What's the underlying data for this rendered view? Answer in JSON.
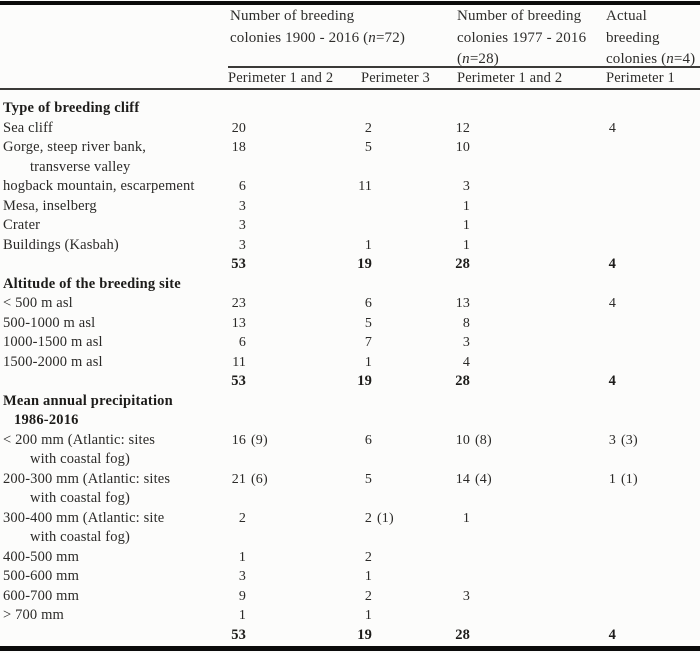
{
  "page": {
    "background": "#fcfcfb",
    "text_color": "#2b2a28",
    "rule_color": "#0b0b0b"
  },
  "header": {
    "groups": [
      {
        "line1": "Number of breeding",
        "line2_pre": "colonies 1900 - 2016 (",
        "n_italic": "n",
        "line2_post": "=72)"
      },
      {
        "line1": "Number of breeding",
        "line2": "colonies 1977 - 2016",
        "line3_pre": "(",
        "n_italic": "n",
        "line3_post": "=28)"
      },
      {
        "line1": "Actual",
        "line2": "breeding",
        "line3_pre": "colonies (",
        "n_italic": "n",
        "line3_post": "=4)"
      }
    ],
    "subheaders": [
      "Perimeter 1 and 2",
      "Perimeter 3",
      "Perimeter 1 and 2",
      "Perimeter 1"
    ]
  },
  "table": {
    "columns": [
      "Number of breeding colonies 1900 - 2016 (n=72) — Perimeter 1 and 2",
      "Number of breeding colonies 1900 - 2016 (n=72) — Perimeter 3",
      "Number of breeding colonies 1977 - 2016 (n=28) — Perimeter 1 and 2",
      "Actual breeding colonies (n=4) — Perimeter 1"
    ],
    "rows": [
      {
        "t": "section",
        "l": "Type of breeding cliff"
      },
      {
        "t": "data",
        "l": "Sea cliff",
        "c": [
          [
            "20",
            ""
          ],
          [
            "2",
            ""
          ],
          [
            "12",
            ""
          ],
          [
            "4",
            ""
          ]
        ]
      },
      {
        "t": "data",
        "l": "Gorge, steep river bank,",
        "l2": "transverse valley",
        "c": [
          [
            "18",
            ""
          ],
          [
            "5",
            ""
          ],
          [
            "10",
            ""
          ],
          null
        ]
      },
      {
        "t": "data",
        "l": "hogback mountain, escarpement",
        "c": [
          [
            "6",
            ""
          ],
          [
            "11",
            ""
          ],
          [
            "3",
            ""
          ],
          null
        ]
      },
      {
        "t": "data",
        "l": "Mesa, inselberg",
        "c": [
          [
            "3",
            ""
          ],
          null,
          [
            "1",
            ""
          ],
          null
        ]
      },
      {
        "t": "data",
        "l": "Crater",
        "c": [
          [
            "3",
            ""
          ],
          null,
          [
            "1",
            ""
          ],
          null
        ]
      },
      {
        "t": "data",
        "l": "Buildings (Kasbah)",
        "c": [
          [
            "3",
            ""
          ],
          [
            "1",
            ""
          ],
          [
            "1",
            ""
          ],
          null
        ]
      },
      {
        "t": "total",
        "l": "",
        "c": [
          [
            "53",
            ""
          ],
          [
            "19",
            ""
          ],
          [
            "28",
            ""
          ],
          [
            "4",
            ""
          ]
        ]
      },
      {
        "t": "section",
        "l": "Altitude of the breeding site"
      },
      {
        "t": "data",
        "l": "< 500 m asl",
        "c": [
          [
            "23",
            ""
          ],
          [
            "6",
            ""
          ],
          [
            "13",
            ""
          ],
          [
            "4",
            ""
          ]
        ]
      },
      {
        "t": "data",
        "l": "500-1000 m asl",
        "c": [
          [
            "13",
            ""
          ],
          [
            "5",
            ""
          ],
          [
            "8",
            ""
          ],
          null
        ]
      },
      {
        "t": "data",
        "l": "1000-1500 m asl",
        "c": [
          [
            "6",
            ""
          ],
          [
            "7",
            ""
          ],
          [
            "3",
            ""
          ],
          null
        ]
      },
      {
        "t": "data",
        "l": "1500-2000 m asl",
        "c": [
          [
            "11",
            ""
          ],
          [
            "1",
            ""
          ],
          [
            "4",
            ""
          ],
          null
        ]
      },
      {
        "t": "total",
        "l": "",
        "c": [
          [
            "53",
            ""
          ],
          [
            "19",
            ""
          ],
          [
            "28",
            ""
          ],
          [
            "4",
            ""
          ]
        ]
      },
      {
        "t": "section2",
        "l": "Mean annual precipitation",
        "l2": "1986-2016"
      },
      {
        "t": "data",
        "l": "< 200 mm (Atlantic: sites",
        "l2": "with coastal fog)",
        "c": [
          [
            "16",
            "(9)"
          ],
          [
            "6",
            ""
          ],
          [
            "10",
            "(8)"
          ],
          [
            "3",
            "(3)"
          ]
        ]
      },
      {
        "t": "data",
        "l": "200-300 mm (Atlantic: sites",
        "l2": "with coastal fog)",
        "c": [
          [
            "21",
            "(6)"
          ],
          [
            "5",
            ""
          ],
          [
            "14",
            "(4)"
          ],
          [
            "1",
            "(1)"
          ]
        ]
      },
      {
        "t": "data",
        "l": "300-400 mm (Atlantic: site",
        "l2": "with coastal fog)",
        "c": [
          [
            "2",
            ""
          ],
          [
            "2",
            "(1)"
          ],
          [
            "1",
            ""
          ],
          null
        ]
      },
      {
        "t": "data",
        "l": "400-500 mm",
        "c": [
          [
            "1",
            ""
          ],
          [
            "2",
            ""
          ],
          null,
          null
        ]
      },
      {
        "t": "data",
        "l": "500-600 mm",
        "c": [
          [
            "3",
            ""
          ],
          [
            "1",
            ""
          ],
          null,
          null
        ]
      },
      {
        "t": "data",
        "l": "600-700 mm",
        "c": [
          [
            "9",
            ""
          ],
          [
            "2",
            ""
          ],
          [
            "3",
            ""
          ],
          null
        ]
      },
      {
        "t": "data",
        "l": "> 700 mm",
        "c": [
          [
            "1",
            ""
          ],
          [
            "1",
            ""
          ],
          null,
          null
        ]
      },
      {
        "t": "total",
        "l": "",
        "c": [
          [
            "53",
            ""
          ],
          [
            "19",
            ""
          ],
          [
            "28",
            ""
          ],
          [
            "4",
            ""
          ]
        ]
      }
    ]
  }
}
